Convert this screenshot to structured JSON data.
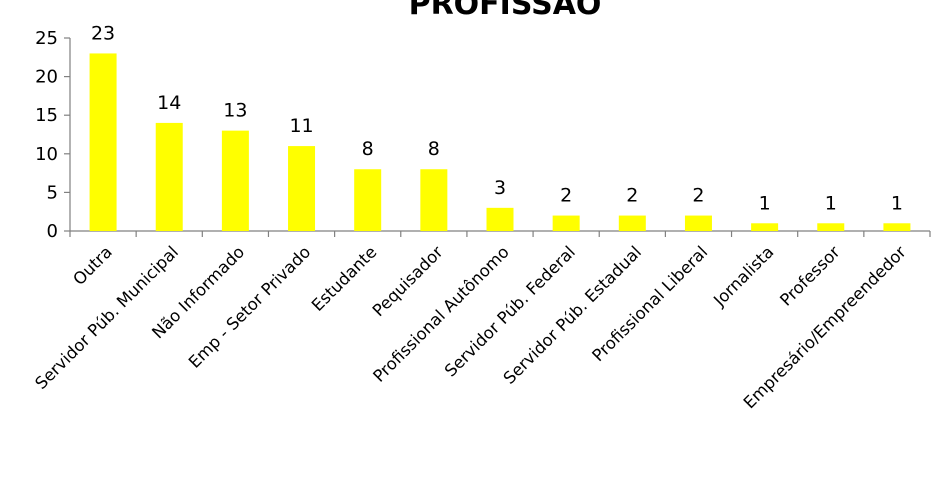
{
  "chart_data": {
    "type": "bar",
    "title": "PROFISSÃO",
    "xlabel": "",
    "ylabel": "",
    "categories": [
      "Outra",
      "Servidor Púb. Municipal",
      "Não Informado",
      "Emp - Setor Privado",
      "Estudante",
      "Pequisador",
      "Profissional Autônomo",
      "Servidor Púb. Federal",
      "Servidor Púb. Estadual",
      "Profissional Liberal",
      "Jornalista",
      "Professor",
      "Empresário/Empreendedor"
    ],
    "values": [
      23,
      14,
      13,
      11,
      8,
      8,
      3,
      2,
      2,
      2,
      1,
      1,
      1
    ],
    "ylim": [
      0,
      25
    ],
    "yticks": [
      0,
      5,
      10,
      15,
      20,
      25
    ],
    "grid": false,
    "legend": "none",
    "bar_color": "#ffff00",
    "axis_color": "#808080"
  }
}
